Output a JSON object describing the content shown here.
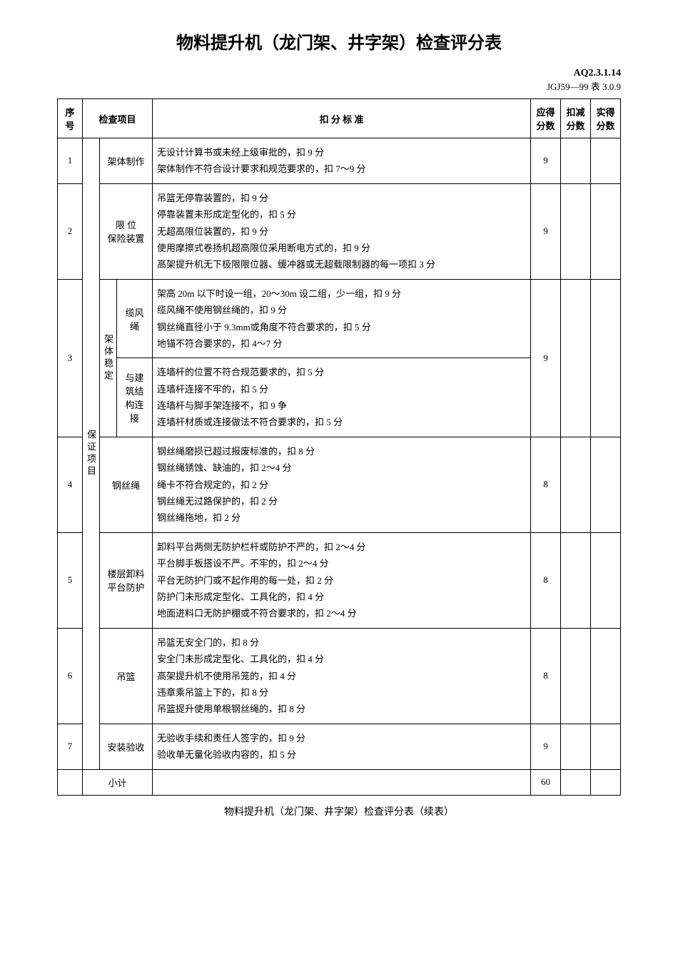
{
  "title": "物料提升机（龙门架、井字架）检查评分表",
  "doc_code_1": "AQ2.3.1.14",
  "doc_code_2": "JGJ59—99 表 3.0.9",
  "headers": {
    "seq": "序号",
    "check_item": "检查项目",
    "criteria": "扣 分 标 准",
    "max_score": "应得分数",
    "deduct_score": "扣减分数",
    "actual_score": "实得分数"
  },
  "category_label": "保证项目",
  "sub_category_label": "架体稳定",
  "rows": [
    {
      "seq": "1",
      "item": "架体制作",
      "criteria": "无设计计算书或未经上级审批的，扣 9 分\n架体制作不符合设计要求和规范要求的，扣 7～9 分",
      "max_score": "9"
    },
    {
      "seq": "2",
      "item": "限 位\n保险装置",
      "criteria": "吊篮无停靠装置的，扣 9 分\n停靠装置未形成定型化的，扣 5 分\n无超高限位装置的，扣 9 分\n使用摩擦式卷扬机超高限位采用断电方式的，扣 9 分\n高架提升机无下极限限位器、缓冲器或无超载限制器的每一项扣 3 分",
      "max_score": "9"
    },
    {
      "seq": "3",
      "sub_items": [
        {
          "name": "缆风绳",
          "criteria": "架高 20m 以下时设一组，20～30m 设二组，少一组，扣 9 分\n缆风绳不使用钢丝绳的，扣 9 分\n钢丝绳直径小于 9.3mm或角度不符合要求的，扣 5 分\n地锚不符合要求的，扣 4～7 分"
        },
        {
          "name": "与建筑结构连接",
          "criteria": "连墙杆的位置不符合规范要求的，扣 5 分\n连墙杆连接不牢的，扣 5 分\n连墙杆与脚手架连接不，扣 9 争\n连墙杆材质或连接做法不符合要求的，扣 5 分"
        }
      ],
      "max_score": "9"
    },
    {
      "seq": "4",
      "item": "钢丝绳",
      "criteria": "钢丝绳磨损已超过报废标准的，扣 8 分\n钢丝绳锈蚀、缺油的，扣 2～4 分\n绳卡不符合规定的，扣 2 分\n钢丝绳无过路保护的，扣 2 分\n钢丝绳拖地，扣 2 分",
      "max_score": "8"
    },
    {
      "seq": "5",
      "item": "楼层卸料平台防护",
      "criteria": "卸料平台两侧无防护栏杆或防护不严的，扣 2～4 分\n平台脚手板搭设不严。不牢的，扣 2～4 分\n平台无防护门或不起作用的每一处，扣 2 分\n防护门未形成定型化、工具化的，扣 4 分\n地面进料口无防护棚或不符合要求的，扣 2～4 分",
      "max_score": "8"
    },
    {
      "seq": "6",
      "item": "吊篮",
      "criteria": "吊篮无安全门的，扣 8 分\n安全门未形成定型化、工具化的，扣 4 分\n高架提升机不使用吊笼的，扣 4 分\n违章乘吊篮上下的，扣 8 分\n吊篮提升使用单根钢丝绳的，扣 8 分",
      "max_score": "8"
    },
    {
      "seq": "7",
      "item": "安装验收",
      "criteria": "无验收手续和责任人签字的，扣 9 分\n验收单无量化验收内容的，扣 5 分",
      "max_score": "9"
    }
  ],
  "subtotal_label": "小计",
  "subtotal_score": "60",
  "footer": "物料提升机（龙门架、井字架）检查评分表（续表）"
}
